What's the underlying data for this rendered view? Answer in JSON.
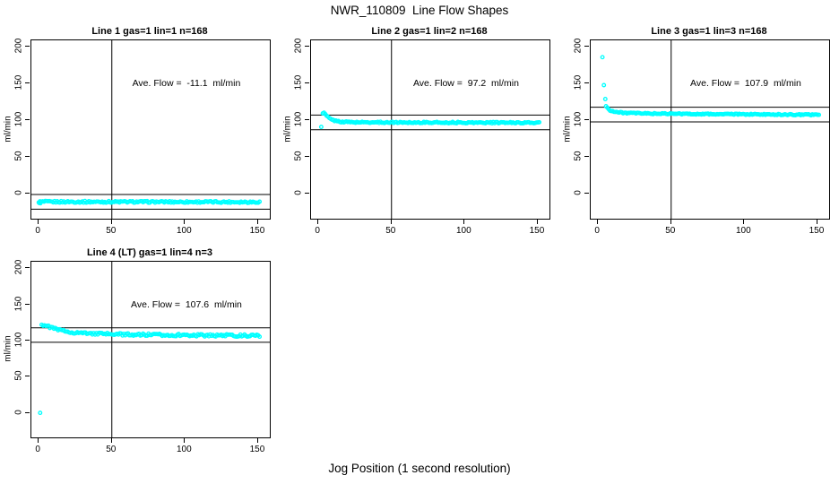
{
  "figure": {
    "title": "NWR_110809  Line Flow Shapes",
    "xlabel": "Jog Position (1 second resolution)",
    "background_color": "#ffffff",
    "point_color": "#00ffff",
    "line_color": "#000000"
  },
  "chart_data": [
    {
      "type": "scatter",
      "title": "Line 1 gas=1 lin=1 n=168",
      "ylabel": "ml/min",
      "annotation": "Ave. Flow =  -11.1  ml/min",
      "ave_flow_ml_min": -11.1,
      "n": 168,
      "xlim": [
        -5,
        158
      ],
      "ylim": [
        -34,
        209
      ],
      "x_ticks": [
        0,
        50,
        100,
        150
      ],
      "y_ticks": [
        0,
        50,
        100,
        150,
        200
      ],
      "vline_x": 50,
      "hlines": [
        -1.1,
        -21.1
      ],
      "annotation_xy": [
        101,
        150
      ],
      "series": {
        "x_start": 0,
        "x_end": 151,
        "count": 168,
        "noise": 1.2,
        "anchors": [
          [
            0,
            -11.0
          ],
          [
            75,
            -11.1
          ],
          [
            151,
            -11.3
          ]
        ],
        "outliers": [
          [
            0.4,
            -12.6
          ],
          [
            1.2,
            -13.0
          ]
        ]
      }
    },
    {
      "type": "scatter",
      "title": "Line 2 gas=1 lin=2 n=168",
      "ylabel": "ml/min",
      "annotation": "Ave. Flow =  97.2  ml/min",
      "ave_flow_ml_min": 97.2,
      "n": 168,
      "xlim": [
        -5,
        158
      ],
      "ylim": [
        -34,
        209
      ],
      "x_ticks": [
        0,
        50,
        100,
        150
      ],
      "y_ticks": [
        0,
        50,
        100,
        150,
        200
      ],
      "vline_x": 50,
      "hlines": [
        107.2,
        87.2
      ],
      "annotation_xy": [
        101,
        150
      ],
      "series": {
        "x_start": 3,
        "x_end": 151,
        "count": 166,
        "noise": 0.9,
        "anchors": [
          [
            3,
            109.5
          ],
          [
            4,
            110
          ],
          [
            5,
            107.5
          ],
          [
            7,
            103.5
          ],
          [
            9,
            101
          ],
          [
            12,
            99
          ],
          [
            16,
            98
          ],
          [
            25,
            97.4
          ],
          [
            60,
            97.1
          ],
          [
            151,
            96.7
          ]
        ],
        "outliers": [
          [
            2,
            91
          ]
        ]
      }
    },
    {
      "type": "scatter",
      "title": "Line 3 gas=1 lin=3 n=168",
      "ylabel": "ml/min",
      "annotation": "Ave. Flow =  107.9  ml/min",
      "ave_flow_ml_min": 107.9,
      "n": 168,
      "xlim": [
        -5,
        158
      ],
      "ylim": [
        -34,
        209
      ],
      "x_ticks": [
        0,
        50,
        100,
        150
      ],
      "y_ticks": [
        0,
        50,
        100,
        150,
        200
      ],
      "vline_x": 50,
      "hlines": [
        117.9,
        97.9
      ],
      "annotation_xy": [
        101,
        150
      ],
      "series": {
        "x_start": 5.5,
        "x_end": 151,
        "count": 164,
        "noise": 0.8,
        "anchors": [
          [
            5.5,
            119.5
          ],
          [
            6.5,
            116.5
          ],
          [
            8,
            114
          ],
          [
            11,
            111.8
          ],
          [
            15,
            110.6
          ],
          [
            22,
            109.8
          ],
          [
            35,
            109.2
          ],
          [
            60,
            108.7
          ],
          [
            100,
            108.2
          ],
          [
            151,
            107.5
          ]
        ],
        "outliers": [
          [
            3,
            186
          ],
          [
            4,
            148
          ],
          [
            5,
            129
          ]
        ]
      }
    },
    {
      "type": "scatter",
      "title": "Line 4 (LT) gas=1 lin=4 n=3",
      "ylabel": "ml/min",
      "annotation": "Ave. Flow =  107.6  ml/min",
      "ave_flow_ml_min": 107.6,
      "n": 3,
      "xlim": [
        -5,
        158
      ],
      "ylim": [
        -34,
        209
      ],
      "x_ticks": [
        0,
        50,
        100,
        150
      ],
      "y_ticks": [
        0,
        50,
        100,
        150,
        200
      ],
      "vline_x": 50,
      "hlines": [
        117.6,
        97.6
      ],
      "annotation_xy": [
        101,
        150
      ],
      "series": {
        "x_start": 2,
        "x_end": 151,
        "count": 160,
        "noise": 1.6,
        "anchors": [
          [
            2,
            122
          ],
          [
            4,
            121.2
          ],
          [
            7,
            119
          ],
          [
            10,
            117
          ],
          [
            14,
            114.5
          ],
          [
            18,
            112.8
          ],
          [
            24,
            111.2
          ],
          [
            32,
            110
          ],
          [
            45,
            109
          ],
          [
            65,
            108.2
          ],
          [
            95,
            107.5
          ],
          [
            130,
            107
          ],
          [
            151,
            106.6
          ]
        ],
        "outliers": [
          [
            1,
            0
          ]
        ]
      }
    }
  ]
}
